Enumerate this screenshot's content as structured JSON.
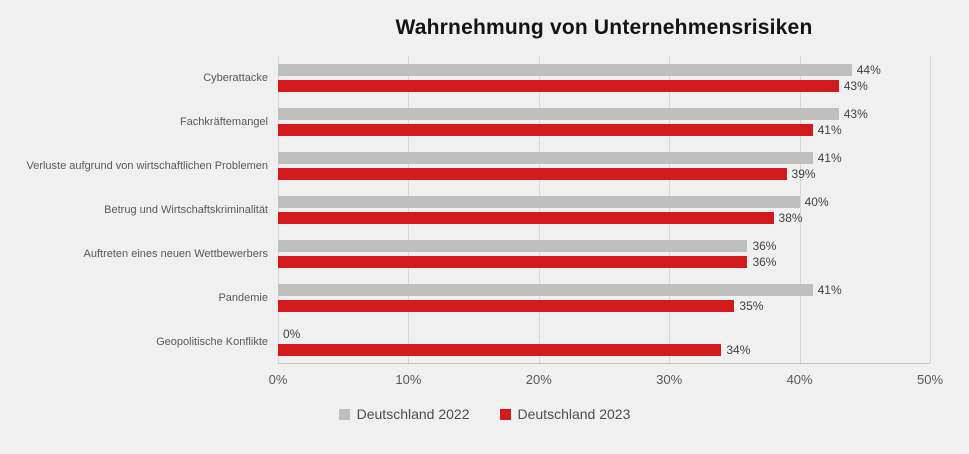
{
  "colors": {
    "background": "#f0f0f0",
    "grid": "#d6d6d6",
    "series_2022": "#bfbfbf",
    "series_2023": "#d2191c",
    "title_text": "#141414",
    "category_text": "#595959",
    "value_text": "#404040"
  },
  "chart_data": {
    "type": "bar",
    "orientation": "horizontal",
    "title": "Wahrnehmung von Unternehmensrisiken",
    "categories": [
      "Cyberattacke",
      "Fachkräftemangel",
      "Verluste aufgrund von wirtschaftlichen Problemen",
      "Betrug und Wirtschaftskriminalität",
      "Auftreten eines neuen Wettbewerbers",
      "Pandemie",
      "Geopolitische Konflikte"
    ],
    "series": [
      {
        "name": "Deutschland 2022",
        "color": "#bfbfbf",
        "values": [
          44,
          43,
          41,
          40,
          36,
          41,
          0
        ]
      },
      {
        "name": "Deutschland 2023",
        "color": "#d2191c",
        "values": [
          43,
          41,
          39,
          38,
          36,
          35,
          34
        ]
      }
    ],
    "xlim": [
      0,
      50
    ],
    "x_ticks": [
      "0%",
      "10%",
      "20%",
      "30%",
      "40%",
      "50%"
    ],
    "value_suffix": "%",
    "grid": true,
    "legend_position": "bottom",
    "data_labels": true
  }
}
